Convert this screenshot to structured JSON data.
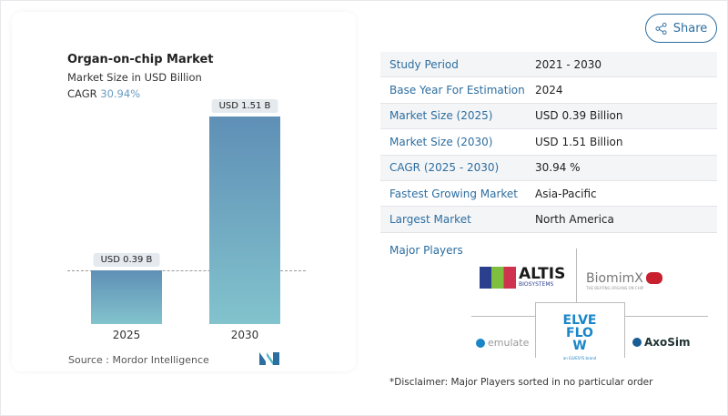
{
  "share": {
    "label": "Share",
    "icon": "share-icon"
  },
  "chart": {
    "title": "Organ-on-chip Market",
    "subtitle": "Market Size in USD Billion",
    "cagr_label": "CAGR",
    "cagr_value": "30.94%",
    "source": "Source :  Mordor Intelligence"
  },
  "chart_data": {
    "type": "bar",
    "title": "Organ-on-chip Market",
    "ylabel": "Market Size in USD Billion",
    "categories": [
      "2025",
      "2030"
    ],
    "values": [
      0.39,
      1.51
    ],
    "data_labels": [
      "USD 0.39 B",
      "USD 1.51 B"
    ],
    "colors": [
      "#5f8fb6",
      "#82c3cd"
    ],
    "reference_line": 0.39,
    "grid": false
  },
  "table": [
    {
      "key": "Study Period",
      "value": "2021 - 2030"
    },
    {
      "key": "Base Year For Estimation",
      "value": "2024"
    },
    {
      "key": "Market Size (2025)",
      "value": "USD 0.39 Billion"
    },
    {
      "key": "Market Size (2030)",
      "value": "USD 1.51 Billion"
    },
    {
      "key": "CAGR (2025 - 2030)",
      "value": "30.94 %"
    },
    {
      "key": "Fastest Growing Market",
      "value": "Asia-Pacific"
    },
    {
      "key": "Largest Market",
      "value": "North America"
    }
  ],
  "players": {
    "title": "Major Players",
    "logos": [
      {
        "name": "ALTIS",
        "sub": "BIOSYSTEMS"
      },
      {
        "name": "BiomimX",
        "sub": "THE BEATING ORGANS ON CHIP"
      },
      {
        "name": "emulate"
      },
      {
        "name": "ELVEFLOW",
        "sub": "an ELVESYS brand"
      },
      {
        "name": "AxoSim"
      }
    ]
  },
  "disclaimer": "*Disclaimer: Major Players sorted in no particular order"
}
